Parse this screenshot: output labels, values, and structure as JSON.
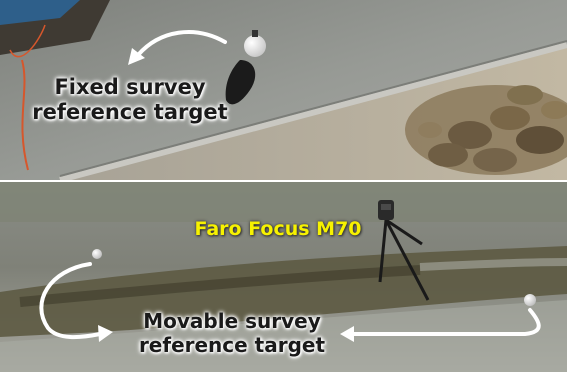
{
  "top_panel": {
    "label_line1": "Fixed survey",
    "label_line2": "reference target"
  },
  "bottom_panel": {
    "scanner_label": "Faro Focus M70",
    "label_line1": "Movable survey",
    "label_line2": "reference target"
  },
  "colors": {
    "scanner_label": "#f7f200",
    "arrow": "#ffffff",
    "wall": "#8e918c",
    "water": "#5d5a42"
  }
}
